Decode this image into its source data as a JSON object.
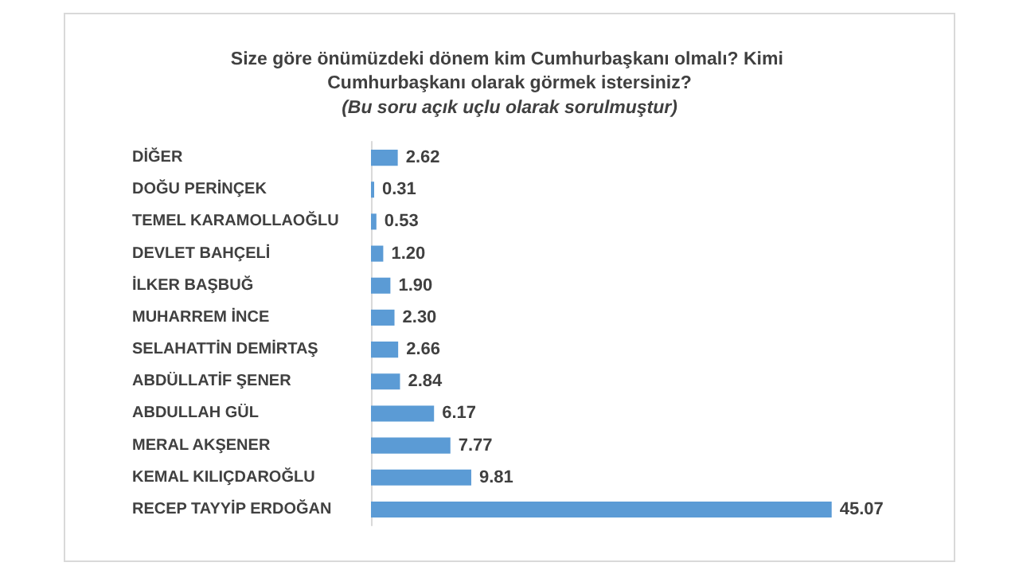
{
  "chart_data": {
    "type": "bar",
    "orientation": "horizontal",
    "title": "Size göre önümüzdeki dönem kim Cumhurbaşkanı olmalı? Kimi Cumhurbaşkanı olarak görmek istersiniz?",
    "subtitle": "(Bu soru açık uçlu olarak sorulmuştur)",
    "categories": [
      "DİĞER",
      "DOĞU PERİNÇEK",
      "TEMEL KARAMOLLAOĞLU",
      "DEVLET BAHÇELİ",
      "İLKER BAŞBUĞ",
      "MUHARREM İNCE",
      "SELAHATTİN DEMİRTAŞ",
      "ABDÜLLATİF ŞENER",
      "ABDULLAH GÜL",
      "MERAL AKŞENER",
      "KEMAL KILIÇDAROĞLU",
      "RECEP TAYYİP ERDOĞAN"
    ],
    "values": [
      2.62,
      0.31,
      0.53,
      1.2,
      1.9,
      2.3,
      2.66,
      2.84,
      6.17,
      7.77,
      9.81,
      45.07
    ],
    "value_labels": [
      "2.62",
      "0.31",
      "0.53",
      "1.20",
      "1.90",
      "2.30",
      "2.66",
      "2.84",
      "6.17",
      "7.77",
      "9.81",
      "45.07"
    ],
    "color": "#5b9bd5"
  }
}
